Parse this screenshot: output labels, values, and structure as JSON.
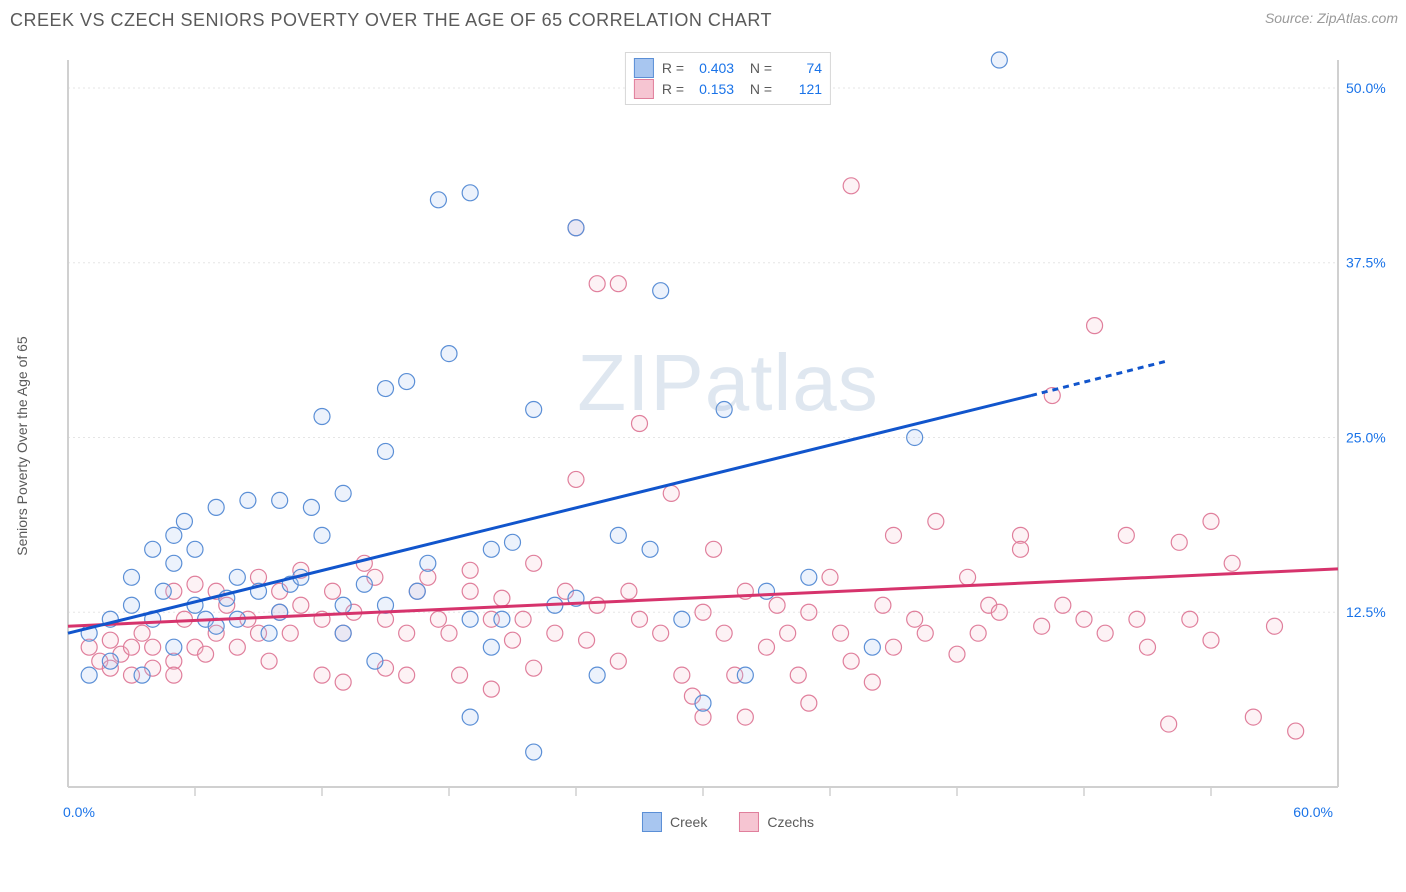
{
  "title": "CREEK VS CZECH SENIORS POVERTY OVER THE AGE OF 65 CORRELATION CHART",
  "source_label": "Source: ",
  "source_site": "ZipAtlas.com",
  "watermark": "ZIPatlas",
  "yaxis_title": "Seniors Poverty Over the Age of 65",
  "chart": {
    "type": "scatter",
    "background_color": "#ffffff",
    "grid_color": "#e5e5e5",
    "axis_line_color": "#d0d0d0",
    "tick_label_color": "#1a73e8",
    "axis_title_color": "#5a5a5a",
    "label_fontsize": 14,
    "xlim": [
      0,
      60
    ],
    "ylim": [
      0,
      52
    ],
    "xtick_major": [
      0,
      60
    ],
    "xtick_minor": [
      6,
      12,
      18,
      24,
      30,
      36,
      42,
      48,
      54
    ],
    "ytick": [
      12.5,
      25.0,
      37.5,
      50.0
    ],
    "xtick_labels": [
      "0.0%",
      "60.0%"
    ],
    "ytick_labels": [
      "12.5%",
      "25.0%",
      "37.5%",
      "50.0%"
    ],
    "marker_radius": 8,
    "marker_stroke_width": 1.2,
    "marker_fill_opacity": 0.22,
    "trend_line_width": 3,
    "series": [
      {
        "name": "Creek",
        "fill": "#a8c6f0",
        "stroke": "#5b8fd6",
        "line_color": "#1155cc",
        "R": "0.403",
        "N": "74",
        "trend": {
          "x1": 0,
          "y1": 11,
          "x2": 45.5,
          "y2": 28,
          "x2_dash": 52,
          "y2_dash": 30.5
        },
        "points": [
          [
            1,
            11
          ],
          [
            1,
            8
          ],
          [
            2,
            9
          ],
          [
            2,
            12
          ],
          [
            3,
            15
          ],
          [
            3,
            13
          ],
          [
            3.5,
            8
          ],
          [
            4,
            17
          ],
          [
            4,
            12
          ],
          [
            4.5,
            14
          ],
          [
            5,
            18
          ],
          [
            5,
            16
          ],
          [
            5,
            10
          ],
          [
            5.5,
            19
          ],
          [
            6,
            13
          ],
          [
            6,
            17
          ],
          [
            6.5,
            12
          ],
          [
            7,
            11.5
          ],
          [
            7,
            20
          ],
          [
            7.5,
            13.5
          ],
          [
            8,
            12
          ],
          [
            8,
            15
          ],
          [
            8.5,
            20.5
          ],
          [
            9,
            14
          ],
          [
            9.5,
            11
          ],
          [
            10,
            12.5
          ],
          [
            10,
            20.5
          ],
          [
            10.5,
            14.5
          ],
          [
            11,
            15
          ],
          [
            11.5,
            20
          ],
          [
            12,
            26.5
          ],
          [
            12,
            18
          ],
          [
            13,
            13
          ],
          [
            13,
            11
          ],
          [
            13,
            21
          ],
          [
            14,
            14.5
          ],
          [
            14.5,
            9
          ],
          [
            15,
            28.5
          ],
          [
            15,
            13
          ],
          [
            15,
            24
          ],
          [
            16,
            29
          ],
          [
            16.5,
            14
          ],
          [
            17,
            16
          ],
          [
            17.5,
            42
          ],
          [
            18,
            31
          ],
          [
            19,
            42.5
          ],
          [
            19,
            12
          ],
          [
            19,
            5
          ],
          [
            20,
            10
          ],
          [
            20,
            17
          ],
          [
            20.5,
            12
          ],
          [
            21,
            17.5
          ],
          [
            22,
            27
          ],
          [
            22,
            2.5
          ],
          [
            23,
            13
          ],
          [
            24,
            40
          ],
          [
            24,
            13.5
          ],
          [
            25,
            8
          ],
          [
            26,
            18
          ],
          [
            27.5,
            17
          ],
          [
            28,
            35.5
          ],
          [
            29,
            12
          ],
          [
            30,
            6
          ],
          [
            31,
            27
          ],
          [
            32,
            8
          ],
          [
            33,
            14
          ],
          [
            35,
            15
          ],
          [
            38,
            10
          ],
          [
            40,
            25
          ],
          [
            44,
            52
          ]
        ]
      },
      {
        "name": "Czechs",
        "fill": "#f6c5d2",
        "stroke": "#e07f9c",
        "line_color": "#d6336c",
        "R": "0.153",
        "N": "121",
        "trend": {
          "x1": 0,
          "y1": 11.5,
          "x2": 60,
          "y2": 15.6
        },
        "points": [
          [
            1,
            10
          ],
          [
            1.5,
            9
          ],
          [
            2,
            10.5
          ],
          [
            2,
            8.5
          ],
          [
            2.5,
            9.5
          ],
          [
            3,
            10
          ],
          [
            3,
            8
          ],
          [
            3.5,
            11
          ],
          [
            4,
            8.5
          ],
          [
            4,
            10
          ],
          [
            5,
            9
          ],
          [
            5,
            14
          ],
          [
            5,
            8
          ],
          [
            5.5,
            12
          ],
          [
            6,
            10
          ],
          [
            6,
            14.5
          ],
          [
            6.5,
            9.5
          ],
          [
            7,
            11
          ],
          [
            7,
            14
          ],
          [
            7.5,
            13
          ],
          [
            8,
            10
          ],
          [
            8.5,
            12
          ],
          [
            9,
            11
          ],
          [
            9,
            15
          ],
          [
            9.5,
            9
          ],
          [
            10,
            14
          ],
          [
            10,
            12.5
          ],
          [
            10.5,
            11
          ],
          [
            11,
            13
          ],
          [
            11,
            15.5
          ],
          [
            12,
            12
          ],
          [
            12,
            8
          ],
          [
            12.5,
            14
          ],
          [
            13,
            11
          ],
          [
            13,
            7.5
          ],
          [
            13.5,
            12.5
          ],
          [
            14,
            16
          ],
          [
            14.5,
            15
          ],
          [
            15,
            12
          ],
          [
            15,
            8.5
          ],
          [
            16,
            11
          ],
          [
            16,
            8
          ],
          [
            16.5,
            14
          ],
          [
            17,
            15
          ],
          [
            17.5,
            12
          ],
          [
            18,
            11
          ],
          [
            18.5,
            8
          ],
          [
            19,
            14
          ],
          [
            19,
            15.5
          ],
          [
            20,
            12
          ],
          [
            20,
            7
          ],
          [
            20.5,
            13.5
          ],
          [
            21,
            10.5
          ],
          [
            21.5,
            12
          ],
          [
            22,
            16
          ],
          [
            22,
            8.5
          ],
          [
            23,
            11
          ],
          [
            23.5,
            14
          ],
          [
            24,
            22
          ],
          [
            24,
            40
          ],
          [
            24.5,
            10.5
          ],
          [
            25,
            13
          ],
          [
            25,
            36
          ],
          [
            26,
            9
          ],
          [
            26,
            36
          ],
          [
            26.5,
            14
          ],
          [
            27,
            26
          ],
          [
            27,
            12
          ],
          [
            28,
            11
          ],
          [
            28.5,
            21
          ],
          [
            29,
            8
          ],
          [
            29.5,
            6.5
          ],
          [
            30,
            12.5
          ],
          [
            30,
            5
          ],
          [
            30.5,
            17
          ],
          [
            31,
            11
          ],
          [
            31.5,
            8
          ],
          [
            32,
            5
          ],
          [
            32,
            14
          ],
          [
            33,
            10
          ],
          [
            33.5,
            13
          ],
          [
            34,
            11
          ],
          [
            34.5,
            8
          ],
          [
            35,
            6
          ],
          [
            35,
            12.5
          ],
          [
            36,
            15
          ],
          [
            36.5,
            11
          ],
          [
            37,
            9
          ],
          [
            37,
            43
          ],
          [
            38,
            7.5
          ],
          [
            38.5,
            13
          ],
          [
            39,
            10
          ],
          [
            39,
            18
          ],
          [
            40,
            12
          ],
          [
            40.5,
            11
          ],
          [
            41,
            19
          ],
          [
            42,
            9.5
          ],
          [
            42.5,
            15
          ],
          [
            43,
            11
          ],
          [
            43.5,
            13
          ],
          [
            44,
            12.5
          ],
          [
            45,
            18
          ],
          [
            45,
            17
          ],
          [
            46,
            11.5
          ],
          [
            46.5,
            28
          ],
          [
            47,
            13
          ],
          [
            48,
            12
          ],
          [
            48.5,
            33
          ],
          [
            49,
            11
          ],
          [
            50,
            18
          ],
          [
            50.5,
            12
          ],
          [
            51,
            10
          ],
          [
            52,
            4.5
          ],
          [
            52.5,
            17.5
          ],
          [
            53,
            12
          ],
          [
            54,
            10.5
          ],
          [
            54,
            19
          ],
          [
            55,
            16
          ],
          [
            56,
            5
          ],
          [
            57,
            11.5
          ],
          [
            58,
            4
          ]
        ]
      }
    ],
    "legend_bottom": [
      {
        "label": "Creek",
        "swatch_fill": "#a8c6f0",
        "swatch_stroke": "#5b8fd6"
      },
      {
        "label": "Czechs",
        "swatch_fill": "#f6c5d2",
        "swatch_stroke": "#e07f9c"
      }
    ]
  }
}
